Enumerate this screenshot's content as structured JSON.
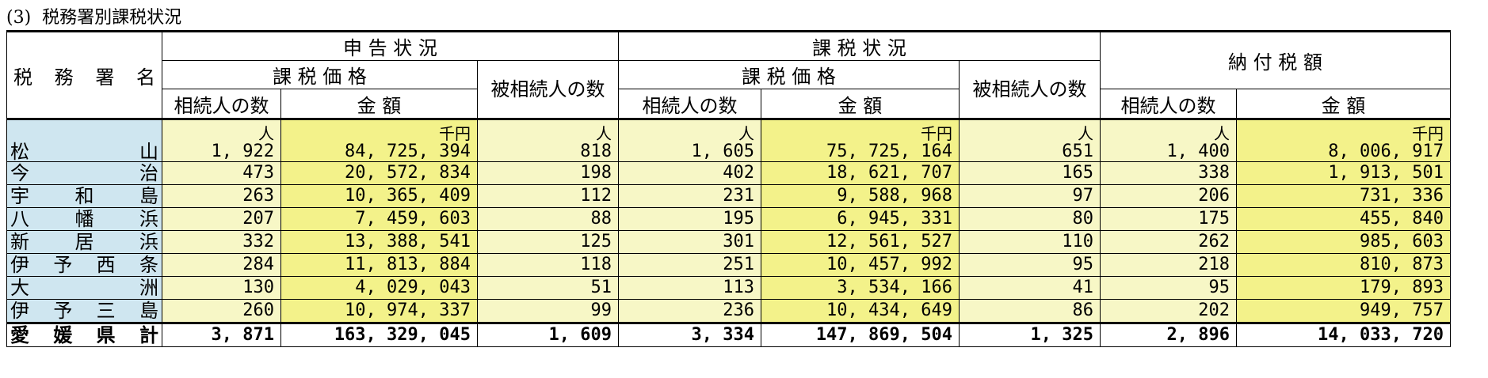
{
  "caption": {
    "number": "(3)",
    "title": "税務署別課税状況"
  },
  "headers": {
    "office_name": "税 務 署 名",
    "group_declaration": "申 告 状 況",
    "group_taxation": "課 税 状 況",
    "group_payment": "納 付 税 額",
    "taxable_value": "課 税 価 格",
    "decedents": "被相続人の数",
    "heirs_count": "相続人の数",
    "amount": "金 額"
  },
  "units": {
    "person": "人",
    "thousand_yen": "千円"
  },
  "rows": [
    {
      "name": "松 山",
      "c1": "1, 922",
      "c2": "84, 725, 394",
      "c3": "818",
      "c4": "1, 605",
      "c5": "75, 725, 164",
      "c6": "651",
      "c7": "1, 400",
      "c8": "8, 006, 917"
    },
    {
      "name": "今 治",
      "c1": "473",
      "c2": "20, 572, 834",
      "c3": "198",
      "c4": "402",
      "c5": "18, 621, 707",
      "c6": "165",
      "c7": "338",
      "c8": "1, 913, 501"
    },
    {
      "name": "宇 和 島",
      "c1": "263",
      "c2": "10, 365, 409",
      "c3": "112",
      "c4": "231",
      "c5": "9, 588, 968",
      "c6": "97",
      "c7": "206",
      "c8": "731, 336"
    },
    {
      "name": "八 幡 浜",
      "c1": "207",
      "c2": "7, 459, 603",
      "c3": "88",
      "c4": "195",
      "c5": "6, 945, 331",
      "c6": "80",
      "c7": "175",
      "c8": "455, 840"
    },
    {
      "name": "新 居 浜",
      "c1": "332",
      "c2": "13, 388, 541",
      "c3": "125",
      "c4": "301",
      "c5": "12, 561, 527",
      "c6": "110",
      "c7": "262",
      "c8": "985, 603"
    },
    {
      "name": "伊 予 西 条",
      "c1": "284",
      "c2": "11, 813, 884",
      "c3": "118",
      "c4": "251",
      "c5": "10, 457, 992",
      "c6": "95",
      "c7": "218",
      "c8": "810, 873"
    },
    {
      "name": "大 洲",
      "c1": "130",
      "c2": "4, 029, 043",
      "c3": "51",
      "c4": "113",
      "c5": "3, 534, 166",
      "c6": "41",
      "c7": "95",
      "c8": "179, 893"
    },
    {
      "name": "伊 予 三 島",
      "c1": "260",
      "c2": "10, 974, 337",
      "c3": "99",
      "c4": "236",
      "c5": "10, 434, 649",
      "c6": "86",
      "c7": "202",
      "c8": "949, 757"
    }
  ],
  "total": {
    "name": "愛 媛 県 計",
    "c1": "3, 871",
    "c2": "163, 329, 045",
    "c3": "1, 609",
    "c4": "3, 334",
    "c5": "147, 869, 504",
    "c6": "1, 325",
    "c7": "2, 896",
    "c8": "14, 033, 720"
  }
}
